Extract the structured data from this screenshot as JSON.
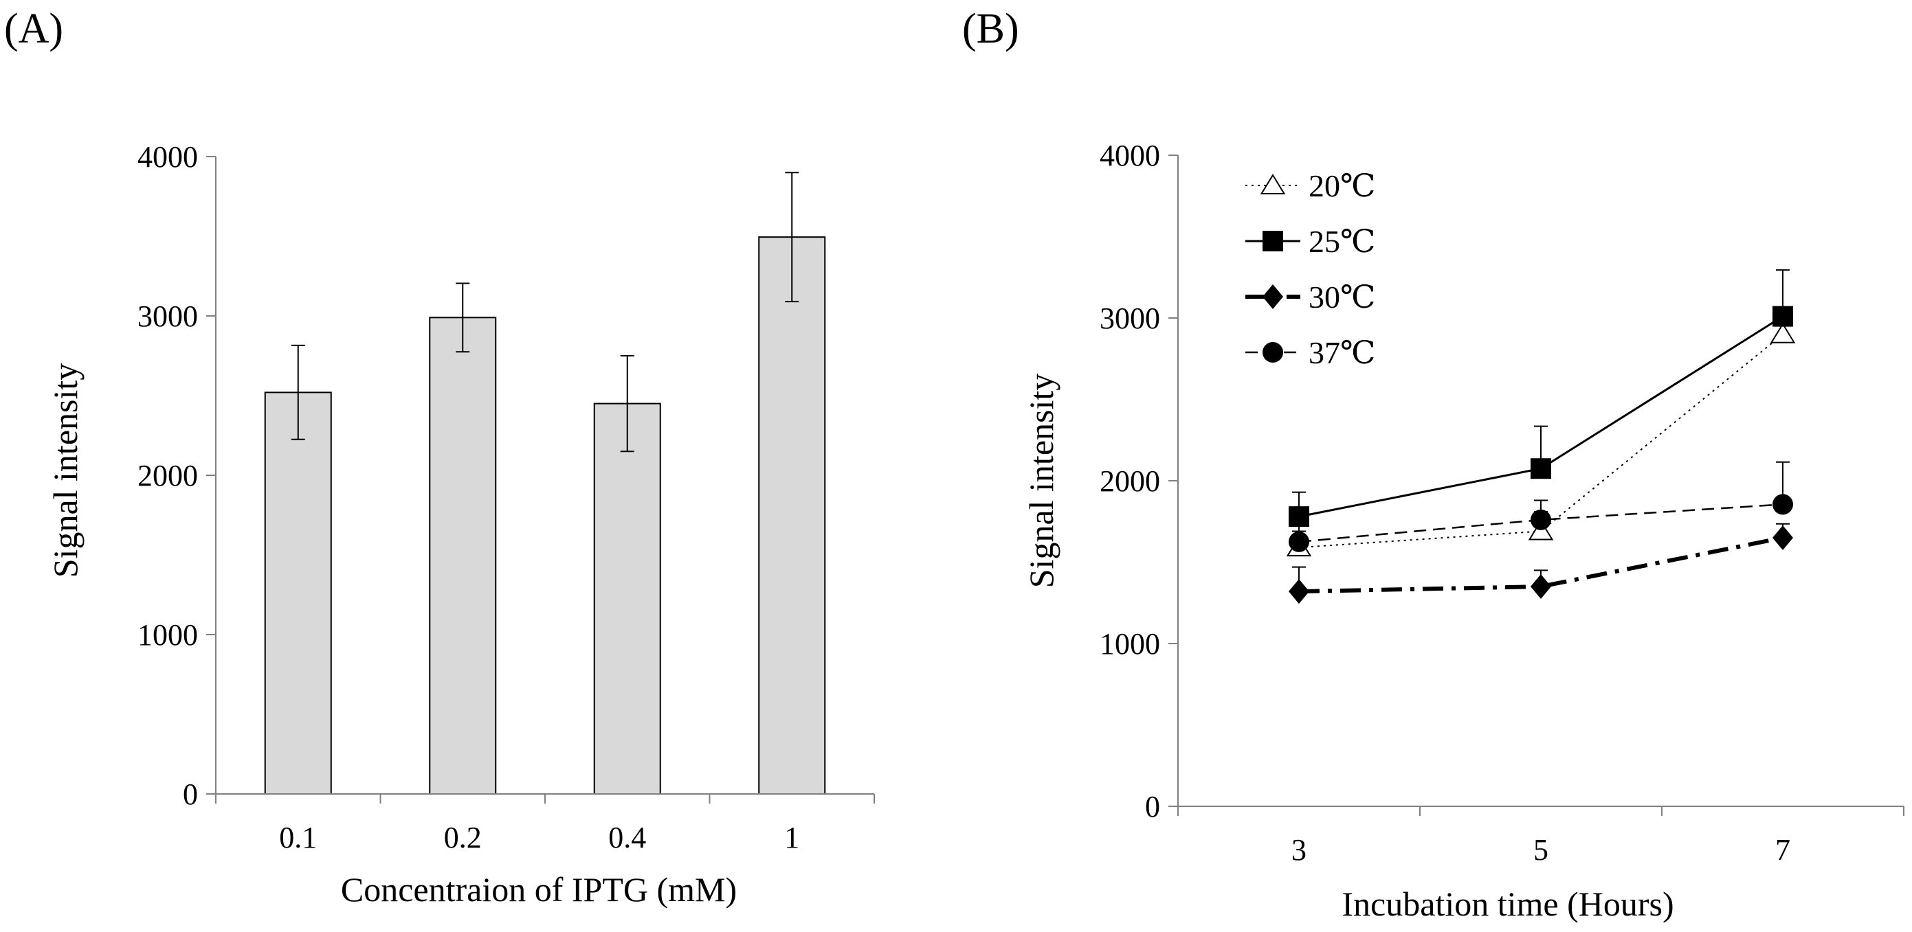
{
  "chart_data": [
    {
      "panel": "(A)",
      "type": "bar",
      "categories": [
        "0.1",
        "0.2",
        "0.4",
        "1"
      ],
      "values": [
        2520,
        2990,
        2450,
        3495
      ],
      "errors": [
        295,
        215,
        300,
        405
      ],
      "xlabel": "Concentraion of IPTG (mM)",
      "ylabel": "Signal  intensity",
      "ylim": [
        0,
        4000
      ],
      "yticks": [
        0,
        1000,
        2000,
        3000,
        4000
      ],
      "bar_color": "#d9d9d9",
      "grid": false
    },
    {
      "panel": "(B)",
      "type": "line",
      "x": [
        3,
        5,
        7
      ],
      "xticks": [
        "3",
        "5",
        "7"
      ],
      "xlabel": "Incubation time (Hours)",
      "ylabel": "Signal  intensity",
      "ylim": [
        0,
        4000
      ],
      "yticks": [
        0,
        1000,
        2000,
        3000,
        4000
      ],
      "grid": false,
      "legend_position": "top-left",
      "series": [
        {
          "name": "20℃",
          "values": [
            1590,
            1690,
            2900
          ],
          "errors": [
            100,
            120,
            160
          ],
          "marker": "triangle-open",
          "line": "dotted"
        },
        {
          "name": "25℃",
          "values": [
            1780,
            2075,
            3010
          ],
          "errors": [
            150,
            260,
            285
          ],
          "marker": "square",
          "line": "solid"
        },
        {
          "name": "30℃",
          "values": [
            1320,
            1350,
            1650
          ],
          "errors": [
            150,
            100,
            85
          ],
          "marker": "diamond",
          "line": "dashdot"
        },
        {
          "name": "37℃",
          "values": [
            1625,
            1760,
            1855
          ],
          "errors": [
            120,
            120,
            260
          ],
          "marker": "circle",
          "line": "dashed"
        }
      ]
    }
  ]
}
